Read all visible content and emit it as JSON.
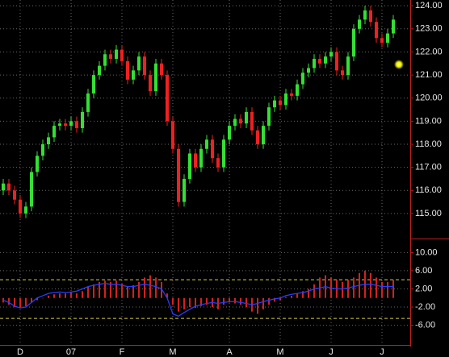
{
  "chart_data": [
    {
      "type": "candlestick",
      "categories": [
        null,
        null,
        null,
        "D",
        null,
        null,
        null,
        null,
        null,
        null,
        null,
        null,
        "07",
        null,
        null,
        null,
        null,
        null,
        null,
        null,
        null,
        "F",
        null,
        null,
        null,
        null,
        null,
        null,
        null,
        null,
        "M",
        null,
        null,
        null,
        null,
        null,
        null,
        null,
        null,
        null,
        "A",
        null,
        null,
        null,
        null,
        null,
        null,
        null,
        null,
        "M",
        null,
        null,
        null,
        null,
        null,
        null,
        null,
        null,
        "J",
        null,
        null,
        null,
        null,
        null,
        null,
        null,
        null,
        "J",
        null,
        null
      ],
      "open": [
        116.0,
        116.3,
        116.0,
        115.6,
        115.0,
        115.3,
        116.8,
        117.5,
        118.0,
        118.3,
        118.8,
        118.9,
        118.8,
        119.0,
        118.7,
        119.4,
        120.2,
        121.0,
        121.4,
        121.9,
        121.7,
        122.1,
        121.6,
        120.8,
        121.2,
        121.8,
        121.0,
        120.3,
        121.5,
        121.0,
        119.0,
        117.8,
        115.5,
        116.5,
        117.6,
        117.0,
        117.8,
        118.2,
        117.4,
        117.0,
        118.2,
        118.8,
        119.1,
        118.9,
        119.4,
        118.6,
        118.0,
        118.8,
        119.6,
        119.9,
        119.7,
        120.2,
        120.1,
        120.6,
        121.1,
        121.3,
        121.7,
        121.5,
        121.8,
        122.0,
        121.2,
        121.0,
        121.8,
        123.0,
        123.4,
        123.8,
        123.3,
        122.6,
        122.4,
        122.8
      ],
      "high": [
        116.5,
        116.5,
        116.2,
        115.8,
        115.5,
        117.0,
        117.7,
        118.2,
        118.5,
        119.0,
        119.1,
        119.1,
        119.2,
        119.2,
        119.6,
        120.4,
        121.2,
        121.6,
        122.1,
        122.1,
        122.3,
        122.3,
        121.8,
        121.4,
        122.0,
        122.0,
        121.2,
        121.7,
        121.7,
        121.2,
        119.2,
        118.0,
        116.7,
        117.8,
        117.8,
        118.0,
        118.4,
        118.4,
        117.6,
        118.4,
        119.0,
        119.3,
        119.3,
        119.6,
        119.6,
        118.8,
        119.0,
        119.8,
        120.1,
        120.1,
        120.4,
        120.4,
        120.8,
        121.3,
        121.5,
        121.9,
        121.9,
        122.0,
        122.2,
        122.2,
        121.4,
        122.0,
        123.2,
        123.6,
        124.0,
        124.0,
        123.5,
        122.8,
        123.0,
        123.6
      ],
      "low": [
        115.8,
        115.8,
        115.4,
        114.8,
        114.8,
        115.1,
        116.6,
        117.3,
        117.8,
        118.1,
        118.6,
        118.6,
        118.6,
        118.5,
        118.5,
        119.2,
        120.0,
        120.8,
        121.2,
        121.5,
        121.5,
        121.4,
        120.6,
        120.6,
        121.0,
        120.8,
        120.1,
        120.1,
        120.8,
        118.8,
        117.6,
        115.3,
        115.3,
        116.3,
        116.8,
        116.8,
        117.6,
        117.2,
        116.8,
        116.8,
        118.0,
        118.6,
        118.7,
        118.7,
        118.4,
        117.8,
        117.8,
        118.6,
        119.4,
        119.5,
        119.5,
        119.9,
        119.9,
        120.4,
        120.9,
        121.1,
        121.3,
        121.3,
        121.6,
        121.0,
        120.8,
        120.8,
        121.6,
        122.8,
        123.2,
        123.1,
        122.4,
        122.2,
        122.2,
        122.6
      ],
      "close": [
        116.3,
        116.0,
        115.6,
        115.0,
        115.3,
        116.8,
        117.5,
        118.0,
        118.3,
        118.8,
        118.9,
        118.8,
        119.0,
        118.7,
        119.4,
        120.2,
        121.0,
        121.4,
        121.9,
        121.7,
        122.1,
        121.6,
        120.8,
        121.2,
        121.8,
        121.0,
        120.3,
        121.5,
        121.0,
        119.0,
        117.8,
        115.5,
        116.5,
        117.6,
        117.0,
        117.8,
        118.2,
        117.4,
        117.0,
        118.2,
        118.8,
        119.1,
        118.9,
        119.4,
        118.6,
        118.0,
        118.8,
        119.6,
        119.9,
        119.7,
        120.2,
        120.1,
        120.6,
        121.1,
        121.3,
        121.7,
        121.5,
        121.8,
        122.0,
        121.2,
        121.0,
        121.8,
        123.0,
        123.4,
        123.8,
        123.3,
        122.6,
        122.4,
        122.8,
        123.4
      ],
      "up_color": "#33e033",
      "down_color": "#f02020",
      "ylim": [
        113.95,
        124.25
      ],
      "yticks": [
        {
          "value": 124,
          "label": "124.00"
        },
        {
          "value": 123,
          "label": "123.00"
        },
        {
          "value": 122,
          "label": "122.00"
        },
        {
          "value": 121,
          "label": "121.00"
        },
        {
          "value": 120,
          "label": "120.00"
        },
        {
          "value": 119,
          "label": "119.00"
        },
        {
          "value": 118,
          "label": "118.00"
        },
        {
          "value": 117,
          "label": "117.00"
        },
        {
          "value": 116,
          "label": "116.00"
        },
        {
          "value": 115,
          "label": "115.00"
        }
      ],
      "grid": true
    },
    {
      "type": "combo",
      "bars": {
        "color": "#d42020",
        "values": [
          -1.0,
          -1.5,
          -2.0,
          -2.2,
          -1.8,
          -1.0,
          -0.5,
          0,
          0.5,
          0.8,
          1.0,
          1.0,
          1.2,
          1.0,
          1.5,
          2.5,
          3.0,
          3.5,
          3.8,
          3.5,
          3.8,
          3.2,
          2.5,
          2.8,
          3.5,
          4.5,
          5.0,
          4.5,
          3.5,
          1.0,
          -1.5,
          -3.0,
          -2.5,
          -2.0,
          -2.2,
          -1.8,
          -1.5,
          -2.0,
          -2.5,
          -1.5,
          -1.0,
          -1.2,
          -1.5,
          -2.0,
          -3.0,
          -3.5,
          -2.5,
          -1.5,
          -0.8,
          -0.5,
          0.2,
          0.5,
          1.0,
          1.5,
          2.0,
          3.0,
          4.5,
          5.0,
          4.5,
          4.0,
          3.5,
          4.0,
          4.5,
          5.5,
          6.0,
          5.5,
          4.5,
          3.5,
          3.5,
          4.0
        ]
      },
      "line": {
        "color": "#2a3cff",
        "values": [
          -0.5,
          -1.0,
          -1.8,
          -2.2,
          -2.0,
          -1.0,
          0,
          0.5,
          1.0,
          1.2,
          1.3,
          1.2,
          1.3,
          1.5,
          2.0,
          2.5,
          2.8,
          3.0,
          3.2,
          3.0,
          3.0,
          2.8,
          2.5,
          2.5,
          2.8,
          3.0,
          2.8,
          2.5,
          2.0,
          0,
          -3.5,
          -4.0,
          -3.2,
          -2.5,
          -1.8,
          -1.5,
          -1.2,
          -1.0,
          -1.2,
          -1.0,
          -0.8,
          -0.8,
          -1.0,
          -1.2,
          -1.5,
          -1.2,
          -0.8,
          -0.5,
          -0.2,
          0,
          0.5,
          0.8,
          1.0,
          1.2,
          1.5,
          2.0,
          2.2,
          2.5,
          2.2,
          2.0,
          2.0,
          2.2,
          2.5,
          2.8,
          3.0,
          3.0,
          2.8,
          2.5,
          2.5,
          2.5
        ]
      },
      "levels": [
        4,
        -4.5
      ],
      "level_color": "#d8d040",
      "ylim": [
        -9.8,
        12.9
      ],
      "yticks": [
        {
          "value": 10,
          "label": "10.00"
        },
        {
          "value": 6,
          "label": "6.00"
        },
        {
          "value": 2,
          "label": "2.00"
        },
        {
          "value": -2,
          "label": "-2.00"
        },
        {
          "value": -6,
          "label": "-6.00"
        }
      ],
      "grid": true
    }
  ]
}
